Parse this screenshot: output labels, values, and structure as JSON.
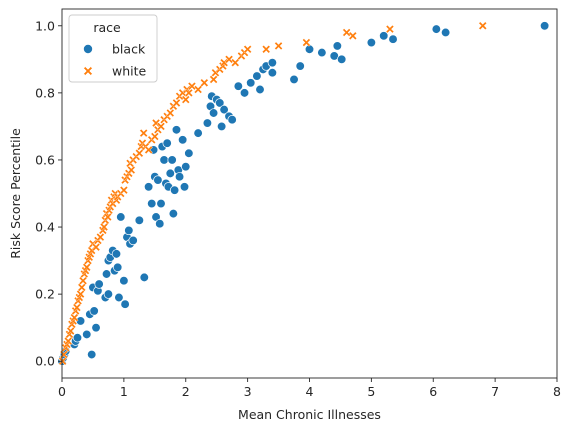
{
  "chart_data": {
    "type": "scatter",
    "xlabel": "Mean Chronic Illnesses",
    "ylabel": "Risk Score Percentile",
    "xlim": [
      0,
      8
    ],
    "ylim": [
      -0.05,
      1.05
    ],
    "x_ticks": [
      0,
      1,
      2,
      3,
      4,
      5,
      6,
      7,
      8
    ],
    "y_ticks": [
      0.0,
      0.2,
      0.4,
      0.6,
      0.8,
      1.0
    ],
    "x_tick_labels": [
      "0",
      "1",
      "2",
      "3",
      "4",
      "5",
      "6",
      "7",
      "8"
    ],
    "y_tick_labels": [
      "0.0",
      "0.2",
      "0.4",
      "0.6",
      "0.8",
      "1.0"
    ],
    "grid": false,
    "legend": {
      "title": "race",
      "placement": "top-left",
      "entries": [
        "black",
        "white"
      ]
    },
    "series": [
      {
        "name": "black",
        "marker": "circle",
        "color": "#1f77b4",
        "points": [
          [
            0.0,
            0.0
          ],
          [
            0.02,
            0.01
          ],
          [
            0.04,
            0.02
          ],
          [
            0.06,
            0.03
          ],
          [
            0.2,
            0.05
          ],
          [
            0.22,
            0.06
          ],
          [
            0.25,
            0.07
          ],
          [
            0.3,
            0.12
          ],
          [
            0.4,
            0.08
          ],
          [
            0.45,
            0.14
          ],
          [
            0.48,
            0.02
          ],
          [
            0.52,
            0.15
          ],
          [
            0.5,
            0.22
          ],
          [
            0.55,
            0.1
          ],
          [
            0.58,
            0.21
          ],
          [
            0.6,
            0.23
          ],
          [
            0.7,
            0.19
          ],
          [
            0.72,
            0.26
          ],
          [
            0.75,
            0.2
          ],
          [
            0.75,
            0.3
          ],
          [
            0.78,
            0.31
          ],
          [
            0.82,
            0.33
          ],
          [
            0.85,
            0.27
          ],
          [
            0.88,
            0.32
          ],
          [
            0.9,
            0.28
          ],
          [
            0.92,
            0.19
          ],
          [
            0.95,
            0.43
          ],
          [
            1.0,
            0.24
          ],
          [
            1.02,
            0.17
          ],
          [
            1.05,
            0.37
          ],
          [
            1.08,
            0.39
          ],
          [
            1.1,
            0.35
          ],
          [
            1.15,
            0.36
          ],
          [
            1.25,
            0.42
          ],
          [
            1.33,
            0.25
          ],
          [
            1.4,
            0.52
          ],
          [
            1.45,
            0.47
          ],
          [
            1.48,
            0.63
          ],
          [
            1.5,
            0.55
          ],
          [
            1.52,
            0.43
          ],
          [
            1.55,
            0.54
          ],
          [
            1.58,
            0.41
          ],
          [
            1.6,
            0.47
          ],
          [
            1.62,
            0.64
          ],
          [
            1.65,
            0.6
          ],
          [
            1.68,
            0.53
          ],
          [
            1.7,
            0.65
          ],
          [
            1.72,
            0.52
          ],
          [
            1.75,
            0.56
          ],
          [
            1.78,
            0.6
          ],
          [
            1.8,
            0.44
          ],
          [
            1.82,
            0.51
          ],
          [
            1.85,
            0.69
          ],
          [
            1.88,
            0.57
          ],
          [
            1.9,
            0.55
          ],
          [
            1.95,
            0.66
          ],
          [
            1.98,
            0.52
          ],
          [
            2.0,
            0.58
          ],
          [
            2.05,
            0.62
          ],
          [
            2.2,
            0.68
          ],
          [
            2.35,
            0.71
          ],
          [
            2.4,
            0.76
          ],
          [
            2.42,
            0.79
          ],
          [
            2.45,
            0.74
          ],
          [
            2.5,
            0.78
          ],
          [
            2.55,
            0.77
          ],
          [
            2.58,
            0.7
          ],
          [
            2.62,
            0.75
          ],
          [
            2.7,
            0.73
          ],
          [
            2.75,
            0.72
          ],
          [
            2.85,
            0.82
          ],
          [
            2.95,
            0.8
          ],
          [
            3.05,
            0.83
          ],
          [
            3.15,
            0.85
          ],
          [
            3.2,
            0.81
          ],
          [
            3.25,
            0.87
          ],
          [
            3.3,
            0.88
          ],
          [
            3.4,
            0.86
          ],
          [
            3.4,
            0.89
          ],
          [
            3.75,
            0.84
          ],
          [
            3.85,
            0.88
          ],
          [
            4.0,
            0.93
          ],
          [
            4.2,
            0.92
          ],
          [
            4.4,
            0.91
          ],
          [
            4.45,
            0.94
          ],
          [
            4.52,
            0.9
          ],
          [
            5.0,
            0.95
          ],
          [
            5.2,
            0.97
          ],
          [
            5.35,
            0.96
          ],
          [
            6.05,
            0.99
          ],
          [
            6.2,
            0.98
          ],
          [
            7.8,
            1.0
          ]
        ]
      },
      {
        "name": "white",
        "marker": "x",
        "color": "#ff7f0e",
        "points": [
          [
            0.01,
            0.0
          ],
          [
            0.03,
            0.02
          ],
          [
            0.06,
            0.04
          ],
          [
            0.08,
            0.05
          ],
          [
            0.1,
            0.06
          ],
          [
            0.12,
            0.08
          ],
          [
            0.14,
            0.09
          ],
          [
            0.16,
            0.11
          ],
          [
            0.18,
            0.12
          ],
          [
            0.2,
            0.13
          ],
          [
            0.22,
            0.15
          ],
          [
            0.24,
            0.16
          ],
          [
            0.26,
            0.18
          ],
          [
            0.28,
            0.19
          ],
          [
            0.3,
            0.2
          ],
          [
            0.32,
            0.22
          ],
          [
            0.34,
            0.24
          ],
          [
            0.36,
            0.26
          ],
          [
            0.38,
            0.27
          ],
          [
            0.4,
            0.28
          ],
          [
            0.42,
            0.3
          ],
          [
            0.44,
            0.31
          ],
          [
            0.46,
            0.32
          ],
          [
            0.48,
            0.33
          ],
          [
            0.5,
            0.35
          ],
          [
            0.55,
            0.34
          ],
          [
            0.58,
            0.36
          ],
          [
            0.62,
            0.37
          ],
          [
            0.66,
            0.39
          ],
          [
            0.68,
            0.4
          ],
          [
            0.7,
            0.42
          ],
          [
            0.72,
            0.44
          ],
          [
            0.74,
            0.43
          ],
          [
            0.76,
            0.45
          ],
          [
            0.78,
            0.46
          ],
          [
            0.8,
            0.48
          ],
          [
            0.82,
            0.47
          ],
          [
            0.84,
            0.49
          ],
          [
            0.86,
            0.5
          ],
          [
            0.88,
            0.48
          ],
          [
            0.9,
            0.49
          ],
          [
            0.95,
            0.5
          ],
          [
            1.0,
            0.51
          ],
          [
            1.02,
            0.54
          ],
          [
            1.05,
            0.55
          ],
          [
            1.08,
            0.56
          ],
          [
            1.1,
            0.59
          ],
          [
            1.12,
            0.57
          ],
          [
            1.15,
            0.6
          ],
          [
            1.2,
            0.61
          ],
          [
            1.25,
            0.62
          ],
          [
            1.28,
            0.64
          ],
          [
            1.3,
            0.65
          ],
          [
            1.32,
            0.68
          ],
          [
            1.35,
            0.64
          ],
          [
            1.4,
            0.63
          ],
          [
            1.45,
            0.66
          ],
          [
            1.5,
            0.67
          ],
          [
            1.52,
            0.71
          ],
          [
            1.55,
            0.69
          ],
          [
            1.6,
            0.7
          ],
          [
            1.65,
            0.72
          ],
          [
            1.7,
            0.73
          ],
          [
            1.75,
            0.74
          ],
          [
            1.8,
            0.76
          ],
          [
            1.85,
            0.77
          ],
          [
            1.9,
            0.79
          ],
          [
            1.95,
            0.8
          ],
          [
            2.0,
            0.78
          ],
          [
            2.02,
            0.81
          ],
          [
            2.05,
            0.8
          ],
          [
            2.1,
            0.82
          ],
          [
            2.2,
            0.81
          ],
          [
            2.3,
            0.83
          ],
          [
            2.45,
            0.84
          ],
          [
            2.48,
            0.86
          ],
          [
            2.55,
            0.87
          ],
          [
            2.6,
            0.88
          ],
          [
            2.62,
            0.89
          ],
          [
            2.7,
            0.9
          ],
          [
            2.8,
            0.89
          ],
          [
            2.9,
            0.91
          ],
          [
            2.95,
            0.92
          ],
          [
            3.0,
            0.93
          ],
          [
            3.3,
            0.93
          ],
          [
            3.5,
            0.94
          ],
          [
            3.95,
            0.95
          ],
          [
            4.6,
            0.98
          ],
          [
            4.7,
            0.97
          ],
          [
            5.3,
            0.99
          ],
          [
            6.8,
            1.0
          ]
        ]
      }
    ]
  }
}
